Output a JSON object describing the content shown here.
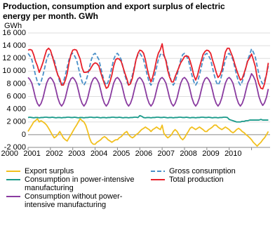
{
  "chart_data": {
    "type": "line",
    "title": "Production, consumption and export surplus of electric energy per month. GWh",
    "y_label": "GWh",
    "grid": true,
    "xlim": [
      2000,
      2010.83
    ],
    "xticks": [
      2000,
      2001,
      2002,
      2003,
      2004,
      2005,
      2006,
      2007,
      2008,
      2009,
      2010
    ],
    "ylim": [
      -2000,
      16000
    ],
    "yticks": [
      {
        "value": -2000,
        "label": "-2 000"
      },
      0,
      {
        "value": 2000,
        "label": "2 000"
      },
      {
        "value": 4000,
        "label": "4 000"
      },
      {
        "value": 6000,
        "label": "6 000"
      },
      {
        "value": 8000,
        "label": "8 000"
      },
      {
        "value": 10000,
        "label": "10 000"
      },
      {
        "value": 12000,
        "label": "12 000"
      },
      {
        "value": 14000,
        "label": "14 000"
      },
      {
        "value": 16000,
        "label": "16 000"
      }
    ],
    "x": [
      2000,
      2000.08,
      2000.17,
      2000.25,
      2000.33,
      2000.42,
      2000.5,
      2000.58,
      2000.67,
      2000.75,
      2000.83,
      2000.92,
      2001,
      2001.08,
      2001.17,
      2001.25,
      2001.33,
      2001.42,
      2001.5,
      2001.58,
      2001.67,
      2001.75,
      2001.83,
      2001.92,
      2002,
      2002.08,
      2002.17,
      2002.25,
      2002.33,
      2002.42,
      2002.5,
      2002.58,
      2002.67,
      2002.75,
      2002.83,
      2002.92,
      2003,
      2003.08,
      2003.17,
      2003.25,
      2003.33,
      2003.42,
      2003.5,
      2003.58,
      2003.67,
      2003.75,
      2003.83,
      2003.92,
      2004,
      2004.08,
      2004.17,
      2004.25,
      2004.33,
      2004.42,
      2004.5,
      2004.58,
      2004.67,
      2004.75,
      2004.83,
      2004.92,
      2005,
      2005.08,
      2005.17,
      2005.25,
      2005.33,
      2005.42,
      2005.5,
      2005.58,
      2005.67,
      2005.75,
      2005.83,
      2005.92,
      2006,
      2006.08,
      2006.17,
      2006.25,
      2006.33,
      2006.42,
      2006.5,
      2006.58,
      2006.67,
      2006.75,
      2006.83,
      2006.92,
      2007,
      2007.08,
      2007.17,
      2007.25,
      2007.33,
      2007.42,
      2007.5,
      2007.58,
      2007.67,
      2007.75,
      2007.83,
      2007.92,
      2008,
      2008.08,
      2008.17,
      2008.25,
      2008.33,
      2008.42,
      2008.5,
      2008.58,
      2008.67,
      2008.75,
      2008.83,
      2008.92,
      2009,
      2009.08,
      2009.17,
      2009.25,
      2009.33,
      2009.42,
      2009.5,
      2009.58,
      2009.67,
      2009.75,
      2009.83,
      2009.92,
      2010,
      2010.08,
      2010.17,
      2010.25,
      2010.33,
      2010.42,
      2010.5,
      2010.58,
      2010.67,
      2010.75
    ],
    "series": [
      {
        "name": "Export surplus",
        "color": "#f2c01e",
        "style": "solid",
        "values": [
          500,
          1000,
          1500,
          2000,
          2200,
          2500,
          2000,
          2200,
          2000,
          1800,
          1500,
          1000,
          500,
          0,
          -500,
          -300,
          0,
          500,
          0,
          -500,
          -800,
          -1000,
          -500,
          0,
          500,
          1000,
          1500,
          2000,
          2500,
          2200,
          2000,
          1500,
          500,
          -500,
          -1200,
          -1500,
          -1500,
          -1200,
          -1000,
          -800,
          -500,
          -300,
          -500,
          -800,
          -1000,
          -1200,
          -1000,
          -800,
          -800,
          -500,
          -300,
          0,
          300,
          500,
          0,
          -300,
          -500,
          -300,
          0,
          200,
          500,
          800,
          1000,
          1200,
          1000,
          800,
          500,
          800,
          1000,
          1200,
          1000,
          800,
          1500,
          200,
          -200,
          -500,
          -300,
          0,
          500,
          800,
          500,
          0,
          -500,
          -800,
          -500,
          0,
          500,
          1000,
          1200,
          1000,
          800,
          1000,
          1200,
          1000,
          800,
          500,
          500,
          800,
          1000,
          1200,
          1500,
          1500,
          1200,
          1000,
          800,
          1000,
          1200,
          1000,
          800,
          500,
          300,
          500,
          800,
          1000,
          800,
          500,
          300,
          0,
          -200,
          -500,
          -800,
          -1200,
          -1500,
          -1800,
          -1500,
          -1200,
          -800,
          -500,
          0,
          500
        ]
      },
      {
        "name": "Consumption in power-intensive manufacturing",
        "color": "#1a9a8a",
        "style": "solid",
        "values": [
          2700,
          2750,
          2700,
          2650,
          2700,
          2700,
          2650,
          2700,
          2700,
          2750,
          2750,
          2700,
          2700,
          2750,
          2700,
          2650,
          2700,
          2700,
          2650,
          2700,
          2700,
          2750,
          2750,
          2700,
          2700,
          2750,
          2700,
          2650,
          2700,
          2700,
          2650,
          2700,
          2700,
          2750,
          2750,
          2700,
          2700,
          2750,
          2700,
          2650,
          2700,
          2700,
          2650,
          2700,
          2700,
          2750,
          2750,
          2700,
          2700,
          2750,
          2700,
          2650,
          2700,
          2700,
          2650,
          2700,
          2700,
          2750,
          2750,
          2700,
          3000,
          2900,
          2700,
          2650,
          2700,
          2700,
          2650,
          2700,
          2700,
          2750,
          2750,
          2700,
          2700,
          2750,
          2700,
          2650,
          2700,
          2700,
          2650,
          2700,
          2700,
          2750,
          2750,
          2700,
          2700,
          2750,
          2700,
          2650,
          2700,
          2700,
          2650,
          2700,
          2700,
          2750,
          2750,
          2700,
          2700,
          2750,
          2700,
          2650,
          2700,
          2700,
          2650,
          2700,
          2700,
          2750,
          2750,
          2700,
          2400,
          2300,
          2200,
          2100,
          2000,
          2000,
          2000,
          2100,
          2100,
          2200,
          2200,
          2300,
          2300,
          2300,
          2300,
          2300,
          2300,
          2400,
          2300,
          2300,
          2300,
          2300
        ]
      },
      {
        "name": "Consumption without power-intensive manufacturing",
        "color": "#8a3ca0",
        "style": "solid",
        "values": [
          9000,
          8700,
          8100,
          7000,
          5800,
          4900,
          4500,
          4900,
          5800,
          7000,
          8100,
          8800,
          9000,
          8700,
          8100,
          7000,
          5800,
          4900,
          4500,
          4900,
          5800,
          7000,
          8100,
          8800,
          9000,
          8700,
          8100,
          7000,
          5800,
          4900,
          4500,
          4900,
          5800,
          7000,
          8100,
          8800,
          9000,
          8700,
          8100,
          7000,
          5800,
          4900,
          4500,
          4900,
          5800,
          7000,
          8100,
          8800,
          9000,
          8700,
          8100,
          7000,
          5800,
          4900,
          4500,
          4900,
          5800,
          7000,
          8100,
          8800,
          9000,
          8700,
          8100,
          7000,
          5800,
          4900,
          4500,
          4900,
          5800,
          7000,
          8100,
          8800,
          9000,
          8700,
          8100,
          7000,
          5800,
          4900,
          4500,
          4900,
          5800,
          7000,
          8100,
          8800,
          9000,
          8700,
          8100,
          7000,
          5800,
          4900,
          4500,
          4900,
          5800,
          7000,
          8100,
          8800,
          9000,
          8700,
          8100,
          7000,
          5800,
          4900,
          4500,
          4900,
          5800,
          7000,
          8100,
          8800,
          9000,
          8700,
          8100,
          7000,
          5800,
          4900,
          4500,
          4900,
          5800,
          7000,
          8100,
          8800,
          9600,
          9200,
          8500,
          7300,
          6000,
          5100,
          4600,
          5000,
          5900,
          7200
        ]
      },
      {
        "name": "Gross consumption",
        "color": "#4a90c8",
        "style": "dashed",
        "values": [
          12800,
          12400,
          11800,
          10600,
          9400,
          8300,
          7800,
          8300,
          9400,
          10600,
          11800,
          12600,
          12800,
          12400,
          11800,
          10600,
          9400,
          8300,
          7800,
          8300,
          9400,
          10600,
          11800,
          12600,
          12800,
          12400,
          11800,
          10600,
          9400,
          8300,
          7800,
          8300,
          9400,
          10600,
          11800,
          12600,
          12800,
          12400,
          11800,
          10600,
          9400,
          8300,
          7800,
          8300,
          9400,
          10600,
          11800,
          12600,
          12800,
          12400,
          11800,
          10600,
          9400,
          8300,
          7800,
          8300,
          9400,
          10600,
          11800,
          12600,
          12800,
          12400,
          11800,
          10600,
          9400,
          8300,
          7800,
          8300,
          9400,
          10600,
          11800,
          12600,
          12800,
          12400,
          11800,
          10600,
          9400,
          8300,
          7800,
          8300,
          9400,
          10600,
          11800,
          12600,
          12800,
          12400,
          11800,
          10600,
          9400,
          8300,
          7800,
          8300,
          9400,
          10600,
          11800,
          12600,
          12800,
          12400,
          11800,
          10600,
          9400,
          8300,
          7800,
          8300,
          9400,
          10600,
          11800,
          12600,
          12800,
          12400,
          11800,
          10600,
          9400,
          8300,
          7800,
          8300,
          9400,
          10600,
          11800,
          12600,
          13500,
          13000,
          12200,
          10800,
          9500,
          8500,
          8000,
          8500,
          9500,
          10800
        ]
      },
      {
        "name": "Total production",
        "color": "#e8202a",
        "style": "solid",
        "values": [
          13300,
          13400,
          13300,
          12600,
          11600,
          10800,
          9800,
          10500,
          11400,
          12400,
          13300,
          13600,
          13300,
          12400,
          11300,
          10300,
          9400,
          8800,
          7800,
          7800,
          8600,
          9600,
          11300,
          12600,
          13300,
          13400,
          13300,
          12600,
          11900,
          10500,
          9800,
          9800,
          9900,
          10100,
          10600,
          11100,
          11300,
          11200,
          10800,
          9800,
          8900,
          8000,
          7300,
          7500,
          8400,
          9400,
          10800,
          11800,
          12000,
          11900,
          11500,
          10600,
          9700,
          8800,
          7800,
          8000,
          8900,
          10300,
          11800,
          12800,
          13300,
          13200,
          12800,
          11800,
          10400,
          9100,
          8300,
          9100,
          10400,
          11800,
          12800,
          13400,
          14300,
          12600,
          11600,
          10100,
          9100,
          8300,
          8300,
          9100,
          9900,
          10600,
          11300,
          11800,
          12300,
          12400,
          12300,
          11600,
          10600,
          9300,
          8600,
          9300,
          10600,
          11600,
          12600,
          13100,
          13300,
          13200,
          12800,
          11800,
          10900,
          9800,
          9000,
          9300,
          10200,
          11600,
          13000,
          13600,
          13600,
          12900,
          12100,
          11100,
          10200,
          9300,
          8600,
          8800,
          9700,
          10600,
          11600,
          12100,
          12700,
          11800,
          10700,
          9000,
          8000,
          7300,
          7200,
          8000,
          9500,
          11300
        ]
      }
    ]
  }
}
